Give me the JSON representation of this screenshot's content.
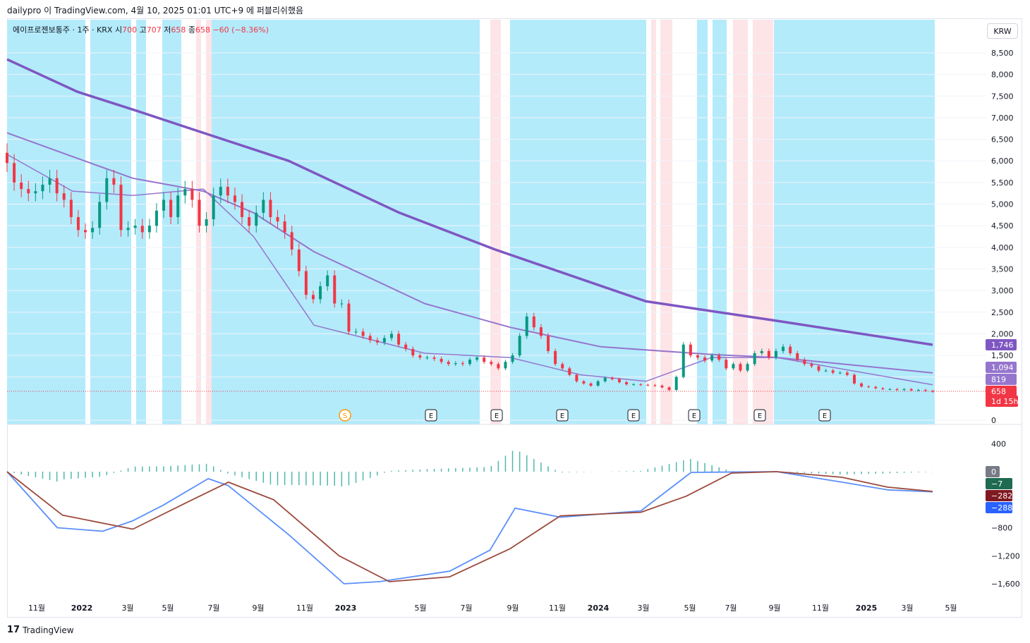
{
  "header": {
    "attribution": "dailypro 이 TradingView.com, 4월 10, 2025 01:01 UTC+9 에 퍼블리쉬했음"
  },
  "legend": {
    "symbol": "에이프로젠보통주 · 1주 · KRX",
    "open_label": "시",
    "open": "700",
    "high_label": "고",
    "high": "707",
    "low_label": "저",
    "low": "658",
    "close_label": "종",
    "close": "658",
    "change": "−60 (−8.36%)"
  },
  "currency_button": "KRW",
  "footer": {
    "brand": "TradingView"
  },
  "chart_data": [
    {
      "type": "candlestick",
      "title": "에이프로젠보통주 · 1주 · KRX",
      "x_ticks": [
        "11월",
        "2022",
        "3월",
        "5월",
        "7월",
        "9월",
        "11월",
        "2023",
        "5월",
        "7월",
        "9월",
        "11월",
        "2024",
        "3월",
        "5월",
        "7월",
        "9월",
        "11월",
        "2025",
        "3월",
        "5월"
      ],
      "y_ticks": [
        "8,500",
        "8,000",
        "7,500",
        "7,000",
        "6,500",
        "6,000",
        "5,500",
        "5,000",
        "4,500",
        "4,000",
        "3,500",
        "3,000",
        "2,500",
        "2,000",
        "1,500",
        "1,000",
        "0"
      ],
      "ylim": [
        0,
        8500
      ],
      "price_tags": [
        {
          "label": "1,746",
          "color": "#7e57c2"
        },
        {
          "label": "1,094",
          "color": "#9575cd"
        },
        {
          "label": "819",
          "color": "#9575cd"
        },
        {
          "label": "658",
          "color": "#f23645"
        },
        {
          "label": "1d 15h",
          "color": "#f23645"
        }
      ],
      "event_markers": [
        "S",
        "E",
        "E",
        "E",
        "E",
        "E",
        "E",
        "E"
      ],
      "series": [
        {
          "name": "",
          "color": "#7e57c2",
          "role": "long-ma",
          "x": [
            "2021-09-27",
            "2022-01-03",
            "2022-03-28",
            "2022-06-27",
            "2022-10-24",
            "2023-03-27",
            "2023-08-07",
            "2024-03-04",
            "2024-09-02",
            "2025-04-07"
          ],
          "values": [
            8350,
            7600,
            7150,
            6650,
            6000,
            4800,
            3950,
            2750,
            2300,
            1746
          ]
        },
        {
          "name": "",
          "color": "#9575cd",
          "role": "mid-ma",
          "x": [
            "2021-09-27",
            "2021-12-27",
            "2022-03-21",
            "2022-06-27",
            "2022-09-05",
            "2022-11-28",
            "2023-05-01",
            "2023-08-28",
            "2024-01-01",
            "2024-06-03",
            "2024-09-02",
            "2025-04-07"
          ],
          "values": [
            6650,
            6100,
            5600,
            5300,
            4800,
            3900,
            2700,
            2150,
            1700,
            1520,
            1450,
            1094
          ]
        },
        {
          "name": "",
          "color": "#9575cd",
          "role": "short-ma",
          "x": [
            "2021-09-27",
            "2021-12-27",
            "2022-03-21",
            "2022-06-27",
            "2022-09-05",
            "2022-11-28",
            "2023-05-01",
            "2023-08-28",
            "2023-12-04",
            "2024-03-04",
            "2024-06-03",
            "2024-09-02",
            "2025-04-07"
          ],
          "values": [
            6150,
            5300,
            5200,
            5350,
            4250,
            2200,
            1550,
            1450,
            1050,
            900,
            1450,
            1450,
            819
          ]
        }
      ],
      "close": [
        5950,
        5500,
        5350,
        5250,
        5300,
        5450,
        5600,
        5250,
        5100,
        4700,
        4400,
        4350,
        4450,
        5050,
        5600,
        5450,
        4400,
        4450,
        4500,
        4350,
        4500,
        4850,
        5100,
        4700,
        5200,
        5350,
        5100,
        4500,
        4650,
        5200,
        5400,
        5200,
        5050,
        4700,
        4500,
        4800,
        5100,
        4700,
        4600,
        4350,
        3950,
        3450,
        2900,
        2800,
        3100,
        3350,
        2700,
        2700,
        2050,
        2050,
        1950,
        1850,
        1800,
        1900,
        2000,
        1750,
        1650,
        1500,
        1450,
        1450,
        1420,
        1350,
        1300,
        1320,
        1300,
        1400,
        1450,
        1350,
        1300,
        1200,
        1350,
        1500,
        1950,
        2400,
        2150,
        1950,
        1600,
        1300,
        1200,
        1050,
        900,
        850,
        800,
        900,
        980,
        950,
        880,
        830,
        830,
        820,
        810,
        800,
        760,
        700,
        1000,
        1750,
        1500,
        1450,
        1380,
        1500,
        1400,
        1200,
        1300,
        1150,
        1300,
        1550,
        1600,
        1450,
        1600,
        1700,
        1550,
        1400,
        1300,
        1250,
        1150,
        1150,
        1100,
        1100,
        1050,
        850,
        780,
        770,
        740,
        720,
        720,
        700,
        720,
        690,
        700,
        680,
        658
      ]
    },
    {
      "type": "macd",
      "y_ticks": [
        "400",
        "0",
        "−800",
        "−1,200",
        "−1,600"
      ],
      "ylim": [
        -1750,
        550
      ],
      "value_tags": [
        {
          "label": "0",
          "color": "#787b86"
        },
        {
          "label": "−7",
          "color": "#1e6b52"
        },
        {
          "label": "−282",
          "color": "#801922"
        },
        {
          "label": "−288",
          "color": "#2962ff"
        }
      ],
      "series": [
        {
          "name": "",
          "color": "#5b8ff9",
          "role": "macd",
          "x": [
            "2021-09-27",
            "2021-12-06",
            "2022-02-07",
            "2022-03-21",
            "2022-05-02",
            "2022-07-04",
            "2022-08-01",
            "2022-10-24",
            "2023-01-09",
            "2023-02-27",
            "2023-06-05",
            "2023-07-31",
            "2023-09-04",
            "2023-11-06",
            "2024-02-26",
            "2024-05-06",
            "2024-09-02",
            "2024-12-02",
            "2025-02-03",
            "2025-04-07"
          ],
          "values": [
            0,
            -800,
            -850,
            -700,
            -480,
            -100,
            -200,
            -900,
            -1600,
            -1570,
            -1420,
            -1120,
            -520,
            -650,
            -560,
            -10,
            0,
            -150,
            -260,
            -288
          ]
        },
        {
          "name": "",
          "color": "#9c4a3c",
          "role": "signal",
          "x": [
            "2021-09-27",
            "2021-12-13",
            "2022-03-21",
            "2022-06-06",
            "2022-08-01",
            "2022-10-03",
            "2023-01-02",
            "2023-03-13",
            "2023-06-05",
            "2023-08-28",
            "2023-11-06",
            "2024-02-26",
            "2024-04-29",
            "2024-07-01",
            "2024-09-02",
            "2024-12-02",
            "2025-02-03",
            "2025-04-07"
          ],
          "values": [
            0,
            -620,
            -820,
            -430,
            -150,
            -400,
            -1200,
            -1570,
            -1500,
            -1100,
            -630,
            -580,
            -350,
            -20,
            0,
            -80,
            -220,
            -282
          ]
        },
        {
          "name": "",
          "color": "#26a69a",
          "role": "histogram",
          "values": [
            -7
          ]
        }
      ]
    }
  ]
}
